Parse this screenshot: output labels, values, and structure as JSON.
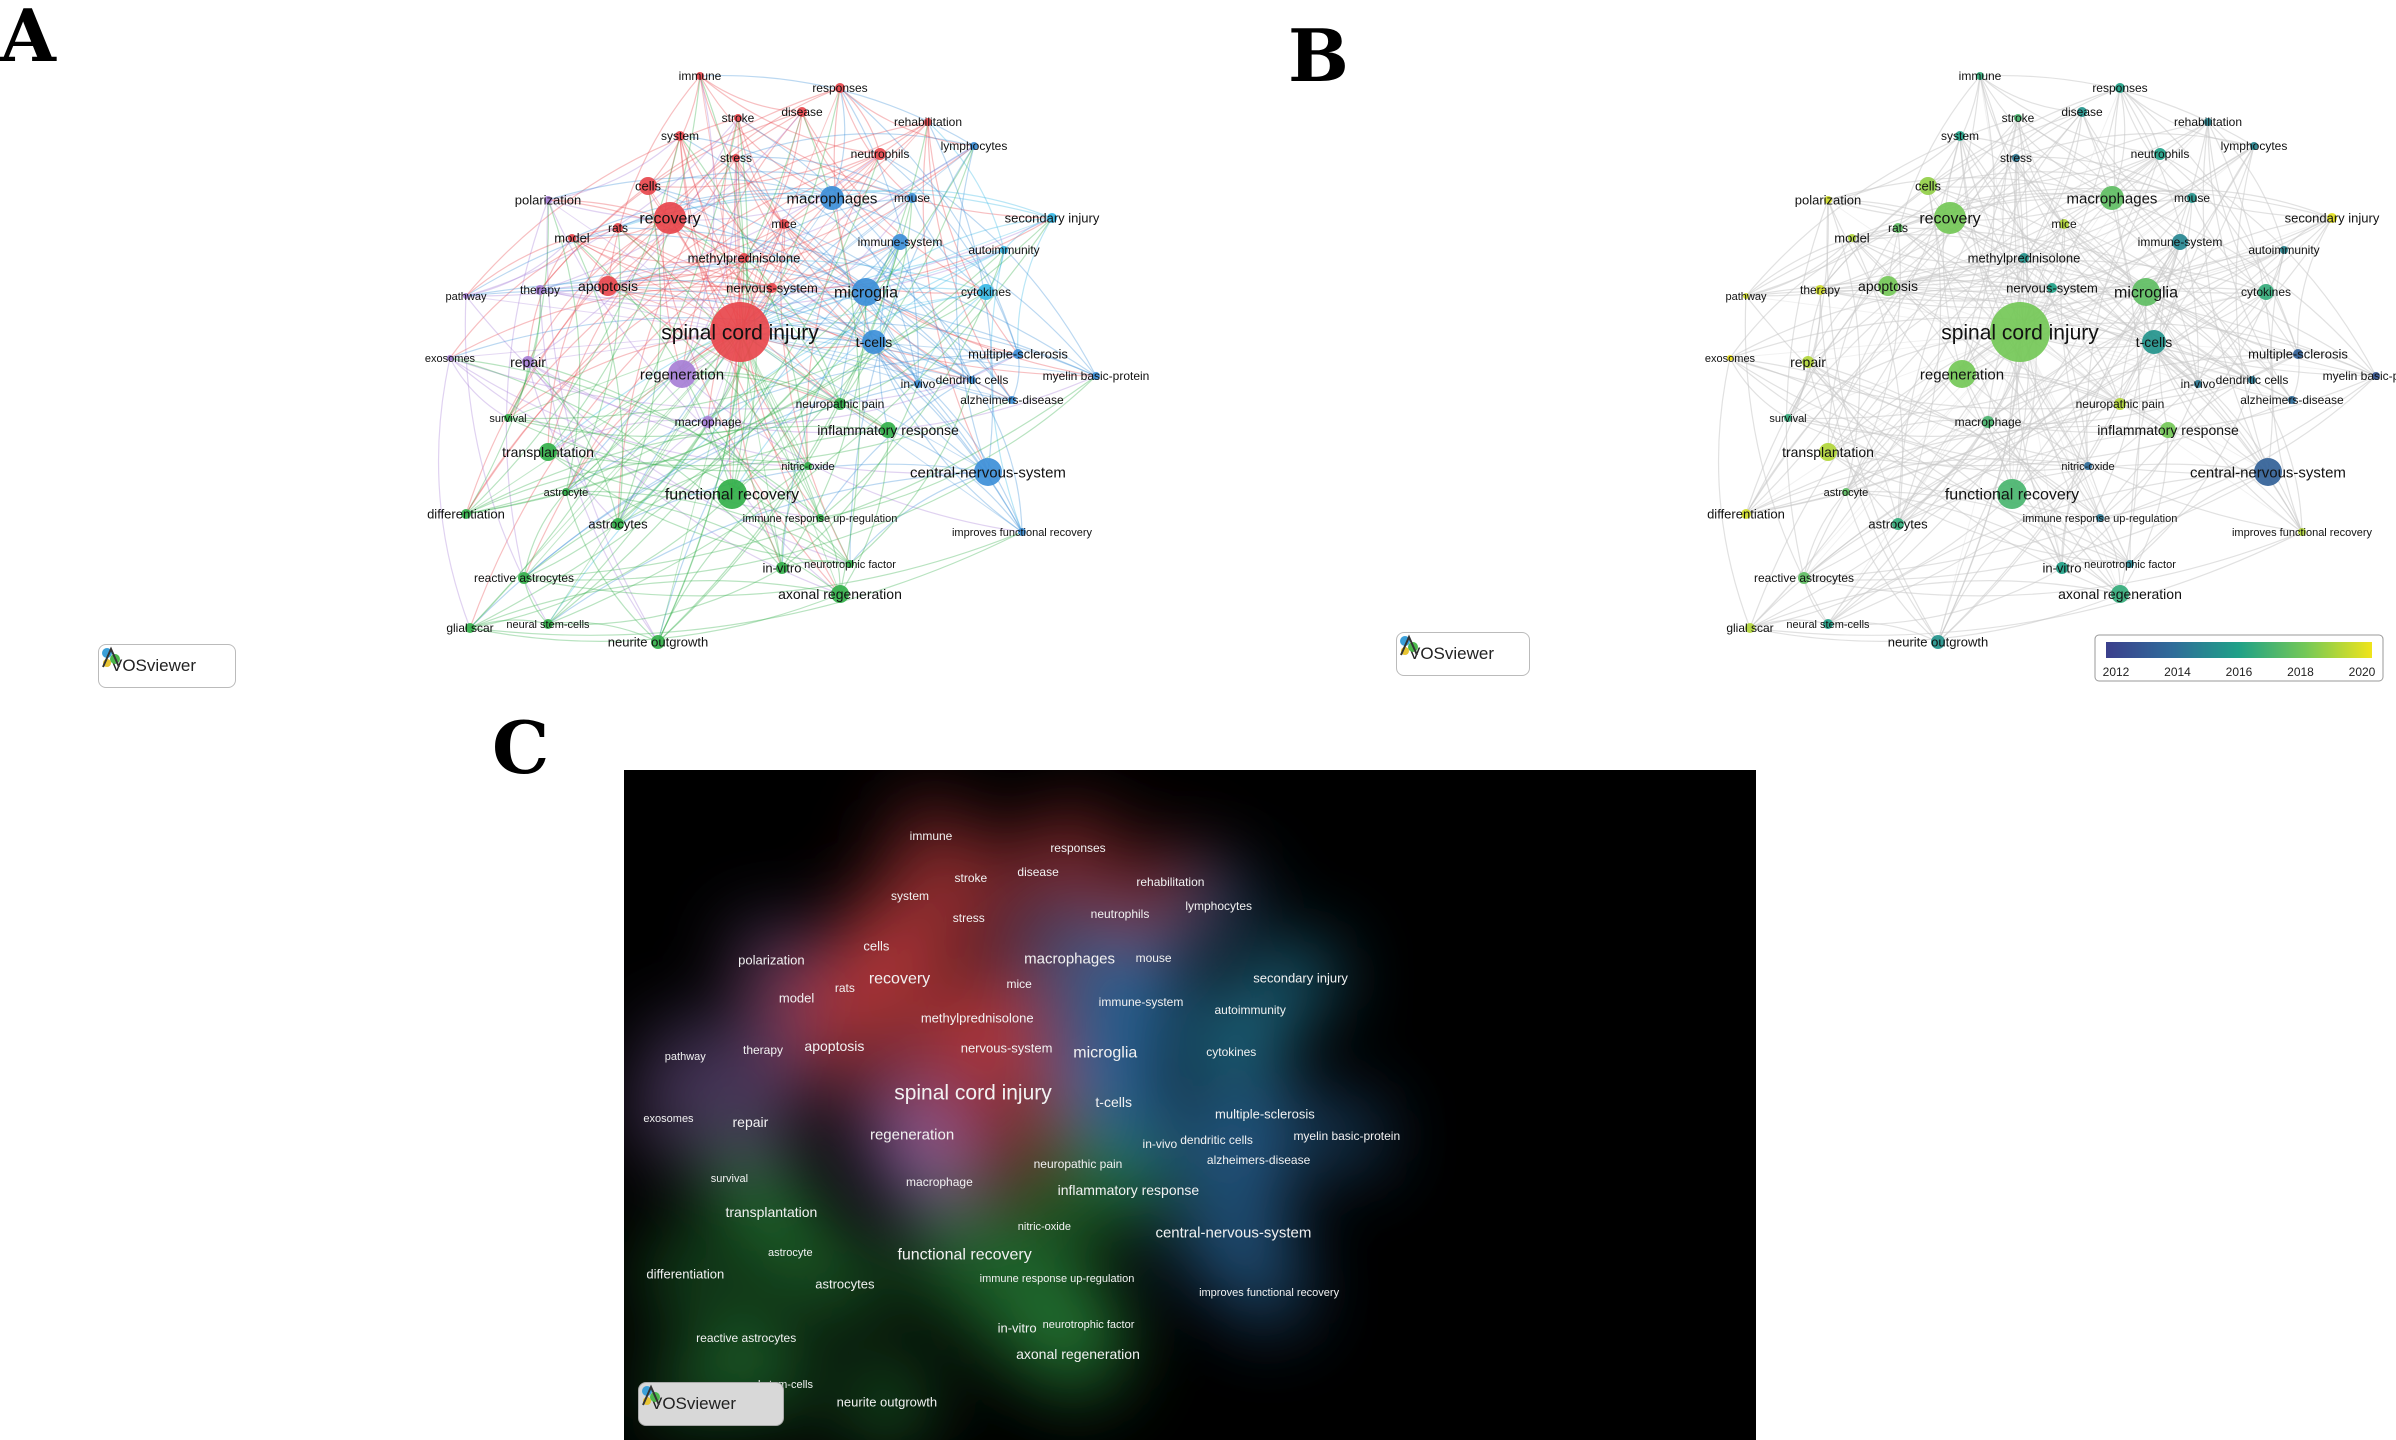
{
  "panels": {
    "a": "A",
    "b": "B",
    "c": "C"
  },
  "brand": "VOSviewer",
  "colors": {
    "red": "#e8474c",
    "green": "#33b04a",
    "blue": "#3d8fd8",
    "lightblue": "#37b8e6",
    "purple": "#a77fd6",
    "yellow": "#d6d236"
  },
  "legend": {
    "ticks": [
      "2012",
      "2014",
      "2016",
      "2018",
      "2020"
    ]
  },
  "keywords": [
    {
      "label": "immune",
      "cluster": "red",
      "year": 2016.5
    },
    {
      "label": "responses",
      "cluster": "red",
      "year": 2016.0
    },
    {
      "label": "stroke",
      "cluster": "red",
      "year": 2017.0
    },
    {
      "label": "disease",
      "cluster": "red",
      "year": 2015.5
    },
    {
      "label": "rehabilitation",
      "cluster": "red",
      "year": 2015.0
    },
    {
      "label": "system",
      "cluster": "red",
      "year": 2016.0
    },
    {
      "label": "stress",
      "cluster": "red",
      "year": 2014.5
    },
    {
      "label": "neutrophils",
      "cluster": "red",
      "year": 2016.0
    },
    {
      "label": "lymphocytes",
      "cluster": "blue",
      "year": 2015.0
    },
    {
      "label": "polarization",
      "cluster": "purple",
      "year": 2019.5
    },
    {
      "label": "cells",
      "cluster": "red",
      "year": 2018.5
    },
    {
      "label": "macrophages",
      "cluster": "blue",
      "year": 2017.5
    },
    {
      "label": "mouse",
      "cluster": "blue",
      "year": 2015.5
    },
    {
      "label": "secondary injury",
      "cluster": "lightblue",
      "year": 2019.8
    },
    {
      "label": "model",
      "cluster": "red",
      "year": 2019.0
    },
    {
      "label": "rats",
      "cluster": "red",
      "year": 2017.5
    },
    {
      "label": "recovery",
      "cluster": "red",
      "year": 2018.0
    },
    {
      "label": "mice",
      "cluster": "red",
      "year": 2019.0
    },
    {
      "label": "immune-system",
      "cluster": "blue",
      "year": 2015.0
    },
    {
      "label": "autoimmunity",
      "cluster": "lightblue",
      "year": 2015.0
    },
    {
      "label": "methylprednisolone",
      "cluster": "red",
      "year": 2015.5
    },
    {
      "label": "pathway",
      "cluster": "purple",
      "year": 2019.5
    },
    {
      "label": "therapy",
      "cluster": "purple",
      "year": 2019.5
    },
    {
      "label": "apoptosis",
      "cluster": "red",
      "year": 2018.0
    },
    {
      "label": "nervous-system",
      "cluster": "red",
      "year": 2016.0
    },
    {
      "label": "microglia",
      "cluster": "blue",
      "year": 2017.5
    },
    {
      "label": "cytokines",
      "cluster": "lightblue",
      "year": 2016.5
    },
    {
      "label": "spinal cord injury",
      "cluster": "red",
      "year": 2018.0
    },
    {
      "label": "t-cells",
      "cluster": "blue",
      "year": 2015.5
    },
    {
      "label": "exosomes",
      "cluster": "purple",
      "year": 2020.0
    },
    {
      "label": "repair",
      "cluster": "purple",
      "year": 2019.0
    },
    {
      "label": "multiple-sclerosis",
      "cluster": "blue",
      "year": 2013.5
    },
    {
      "label": "regeneration",
      "cluster": "purple",
      "year": 2018.0
    },
    {
      "label": "in-vivo",
      "cluster": "blue",
      "year": 2014.5
    },
    {
      "label": "dendritic cells",
      "cluster": "blue",
      "year": 2014.5
    },
    {
      "label": "myelin basic-protein",
      "cluster": "blue",
      "year": 2013.0
    },
    {
      "label": "neuropathic pain",
      "cluster": "green",
      "year": 2019.0
    },
    {
      "label": "alzheimers-disease",
      "cluster": "blue",
      "year": 2014.0
    },
    {
      "label": "survival",
      "cluster": "green",
      "year": 2016.5
    },
    {
      "label": "macrophage",
      "cluster": "purple",
      "year": 2017.0
    },
    {
      "label": "inflammatory response",
      "cluster": "green",
      "year": 2018.0
    },
    {
      "label": "transplantation",
      "cluster": "green",
      "year": 2019.0
    },
    {
      "label": "nitric-oxide",
      "cluster": "green",
      "year": 2014.0
    },
    {
      "label": "central-nervous-system",
      "cluster": "blue",
      "year": 2013.5
    },
    {
      "label": "astrocyte",
      "cluster": "green",
      "year": 2017.5
    },
    {
      "label": "functional recovery",
      "cluster": "green",
      "year": 2017.0
    },
    {
      "label": "differentiation",
      "cluster": "green",
      "year": 2019.5
    },
    {
      "label": "astrocytes",
      "cluster": "green",
      "year": 2016.5
    },
    {
      "label": "immune response up-regulation",
      "cluster": "green",
      "year": 2014.5
    },
    {
      "label": "improves functional recovery",
      "cluster": "blue",
      "year": 2019.0
    },
    {
      "label": "in-vitro",
      "cluster": "green",
      "year": 2016.0
    },
    {
      "label": "neurotrophic factor",
      "cluster": "green",
      "year": 2015.0
    },
    {
      "label": "reactive astrocytes",
      "cluster": "green",
      "year": 2017.5
    },
    {
      "label": "axonal regeneration",
      "cluster": "green",
      "year": 2016.5
    },
    {
      "label": "glial scar",
      "cluster": "green",
      "year": 2019.0
    },
    {
      "label": "neural stem-cells",
      "cluster": "green",
      "year": 2016.0
    },
    {
      "label": "neurite outgrowth",
      "cluster": "green",
      "year": 2015.5
    }
  ]
}
